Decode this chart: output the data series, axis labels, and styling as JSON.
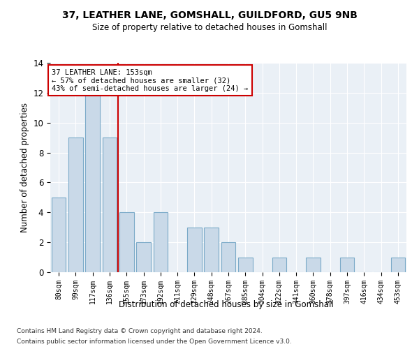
{
  "title1": "37, LEATHER LANE, GOMSHALL, GUILDFORD, GU5 9NB",
  "title2": "Size of property relative to detached houses in Gomshall",
  "xlabel": "Distribution of detached houses by size in Gomshall",
  "ylabel": "Number of detached properties",
  "categories": [
    "80sqm",
    "99sqm",
    "117sqm",
    "136sqm",
    "155sqm",
    "173sqm",
    "192sqm",
    "211sqm",
    "229sqm",
    "248sqm",
    "267sqm",
    "285sqm",
    "304sqm",
    "322sqm",
    "341sqm",
    "360sqm",
    "378sqm",
    "397sqm",
    "416sqm",
    "434sqm",
    "453sqm"
  ],
  "values": [
    5,
    9,
    12,
    9,
    4,
    2,
    4,
    0,
    3,
    3,
    2,
    1,
    0,
    1,
    0,
    1,
    0,
    1,
    0,
    0,
    1
  ],
  "bar_color": "#c9d9e8",
  "bar_edge_color": "#7baac8",
  "vline_color": "#cc0000",
  "annotation_title": "37 LEATHER LANE: 153sqm",
  "annotation_line2": "← 57% of detached houses are smaller (32)",
  "annotation_line3": "43% of semi-detached houses are larger (24) →",
  "annotation_box_color": "#ffffff",
  "annotation_box_edge": "#cc0000",
  "ylim": [
    0,
    14
  ],
  "yticks": [
    0,
    2,
    4,
    6,
    8,
    10,
    12,
    14
  ],
  "background_color": "#eaf0f6",
  "footer1": "Contains HM Land Registry data © Crown copyright and database right 2024.",
  "footer2": "Contains public sector information licensed under the Open Government Licence v3.0."
}
